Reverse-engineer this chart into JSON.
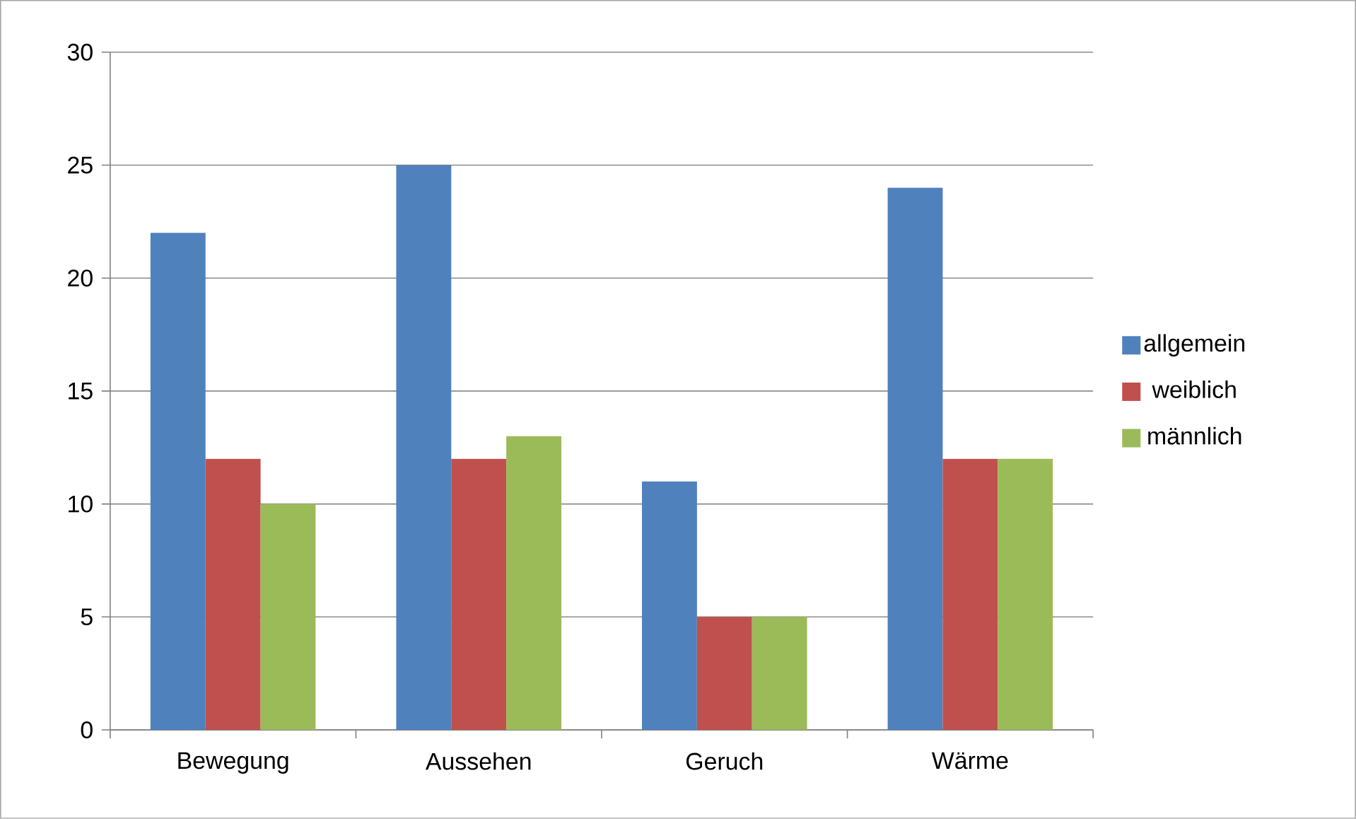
{
  "chart_data": {
    "type": "bar",
    "categories": [
      "Bewegung",
      "Aussehen",
      "Geruch",
      "Wärme"
    ],
    "series": [
      {
        "name": "allgemein",
        "color": "#4f81bd",
        "values": [
          22,
          25,
          11,
          24
        ]
      },
      {
        "name": "weiblich",
        "color": "#c0504d",
        "values": [
          12,
          12,
          5,
          12
        ]
      },
      {
        "name": "männlich",
        "color": "#9bbb59",
        "values": [
          10,
          13,
          5,
          12
        ]
      }
    ],
    "ylim": [
      0,
      30
    ],
    "yticks": [
      0,
      5,
      10,
      15,
      20,
      25,
      30
    ],
    "grid": "y",
    "legend": "right"
  }
}
